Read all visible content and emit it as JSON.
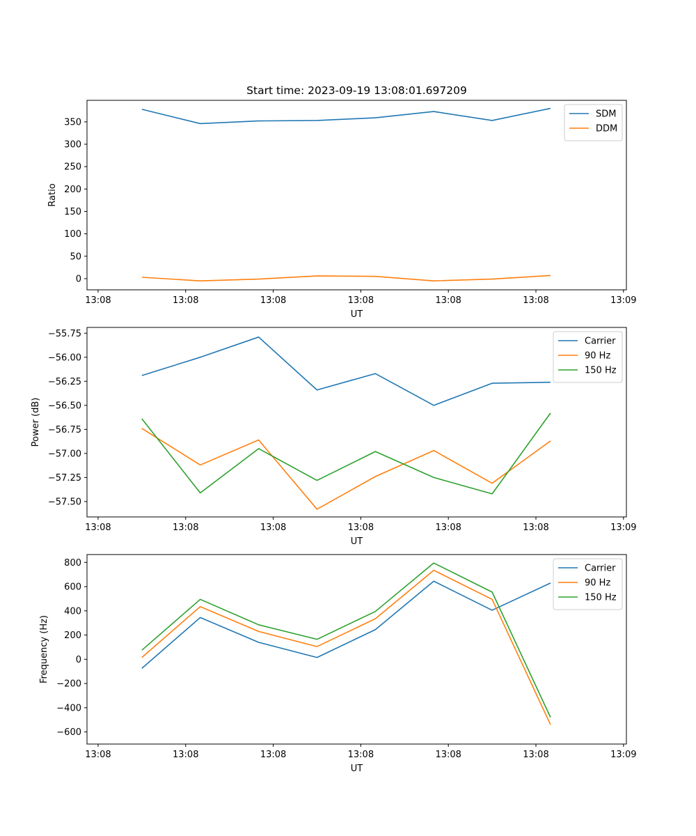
{
  "chart_data": [
    {
      "type": "line",
      "title": "Start time: 2023-09-19 13:08:01.697209",
      "xlabel": "UT",
      "ylabel": "Ratio",
      "x": [
        0,
        1,
        2,
        3,
        4,
        5,
        6,
        7
      ],
      "x_ticks": [
        -0.75,
        0.75,
        2.25,
        3.75,
        5.25,
        6.75,
        8.25
      ],
      "x_tick_labels": [
        "13:08",
        "13:08",
        "13:08",
        "13:08",
        "13:08",
        "13:08",
        "13:09"
      ],
      "xlim": [
        -0.94,
        8.3
      ],
      "y_ticks": [
        0,
        50,
        100,
        150,
        200,
        250,
        300,
        350
      ],
      "ylim": [
        -25,
        398
      ],
      "legend_position": "top-right",
      "series": [
        {
          "name": "SDM",
          "color": "#1f77b4",
          "values": [
            378,
            346,
            352,
            353,
            359,
            373,
            353,
            380
          ]
        },
        {
          "name": "DDM",
          "color": "#ff7f0e",
          "values": [
            3,
            -5,
            -1,
            6,
            5,
            -5,
            -1,
            7
          ]
        }
      ]
    },
    {
      "type": "line",
      "xlabel": "UT",
      "ylabel": "Power (dB)",
      "x": [
        0,
        1,
        2,
        3,
        4,
        5,
        6,
        7
      ],
      "x_ticks": [
        -0.75,
        0.75,
        2.25,
        3.75,
        5.25,
        6.75,
        8.25
      ],
      "x_tick_labels": [
        "13:08",
        "13:08",
        "13:08",
        "13:08",
        "13:08",
        "13:08",
        "13:09"
      ],
      "xlim": [
        -0.94,
        8.3
      ],
      "y_ticks": [
        -57.5,
        -57.25,
        -57.0,
        -56.75,
        -56.5,
        -56.25,
        -56.0,
        -55.75
      ],
      "y_tick_labels": [
        "−57.50",
        "−57.25",
        "−57.00",
        "−56.75",
        "−56.50",
        "−56.25",
        "−56.00",
        "−55.75"
      ],
      "ylim": [
        -57.66,
        -55.69
      ],
      "legend_position": "top-right",
      "series": [
        {
          "name": "Carrier",
          "color": "#1f77b4",
          "values": [
            -56.19,
            -56.0,
            -55.79,
            -56.34,
            -56.17,
            -56.5,
            -56.27,
            -56.26
          ]
        },
        {
          "name": "90 Hz",
          "color": "#ff7f0e",
          "values": [
            -56.74,
            -57.12,
            -56.86,
            -57.58,
            -57.24,
            -56.97,
            -57.31,
            -56.87
          ]
        },
        {
          "name": "150 Hz",
          "color": "#2ca02c",
          "values": [
            -56.64,
            -57.41,
            -56.95,
            -57.28,
            -56.98,
            -57.25,
            -57.42,
            -56.58
          ]
        }
      ]
    },
    {
      "type": "line",
      "xlabel": "UT",
      "ylabel": "Frequency (Hz)",
      "x": [
        0,
        1,
        2,
        3,
        4,
        5,
        6,
        7
      ],
      "x_ticks": [
        -0.75,
        0.75,
        2.25,
        3.75,
        5.25,
        6.75,
        8.25
      ],
      "x_tick_labels": [
        "13:08",
        "13:08",
        "13:08",
        "13:08",
        "13:08",
        "13:08",
        "13:09"
      ],
      "xlim": [
        -0.94,
        8.3
      ],
      "y_ticks": [
        -600,
        -400,
        -200,
        0,
        200,
        400,
        600,
        800
      ],
      "y_tick_labels": [
        "−600",
        "−400",
        "−200",
        "0",
        "200",
        "400",
        "600",
        "800"
      ],
      "ylim": [
        -700,
        865
      ],
      "legend_position": "top-right",
      "series": [
        {
          "name": "Carrier",
          "color": "#1f77b4",
          "values": [
            -75,
            345,
            140,
            15,
            245,
            645,
            405,
            630
          ]
        },
        {
          "name": "90 Hz",
          "color": "#ff7f0e",
          "values": [
            15,
            435,
            230,
            105,
            335,
            735,
            495,
            -540
          ]
        },
        {
          "name": "150 Hz",
          "color": "#2ca02c",
          "values": [
            75,
            495,
            285,
            165,
            395,
            795,
            555,
            -480
          ]
        }
      ]
    }
  ]
}
